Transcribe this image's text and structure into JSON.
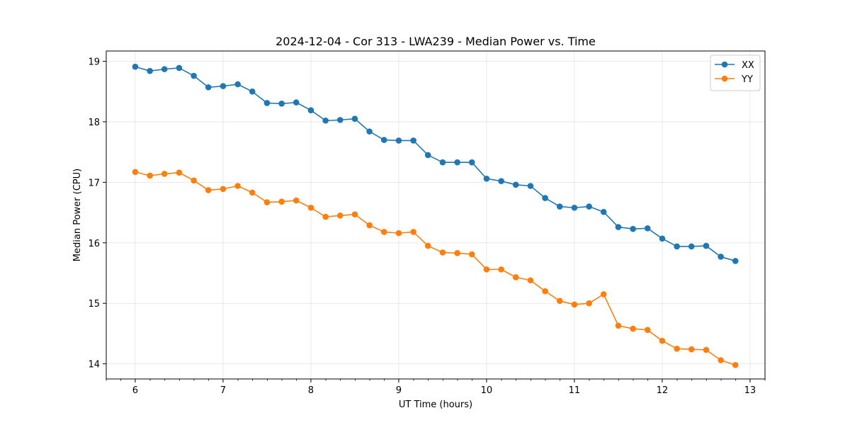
{
  "chart_data": {
    "type": "line",
    "title": "2024-12-04 - Cor 313 - LWA239 - Median Power vs. Time",
    "xlabel": "UT Time (hours)",
    "ylabel": "Median Power (CPU)",
    "xlim": [
      5.67,
      13.17
    ],
    "ylim": [
      13.75,
      19.17
    ],
    "xticks": [
      6,
      7,
      8,
      9,
      10,
      11,
      12,
      13
    ],
    "yticks": [
      14,
      15,
      16,
      17,
      18,
      19
    ],
    "grid": true,
    "legend_position": "top-right",
    "x": [
      6.0,
      6.167,
      6.333,
      6.5,
      6.667,
      6.833,
      7.0,
      7.167,
      7.333,
      7.5,
      7.667,
      7.833,
      8.0,
      8.167,
      8.333,
      8.5,
      8.667,
      8.833,
      9.0,
      9.167,
      9.333,
      9.5,
      9.667,
      9.833,
      10.0,
      10.167,
      10.333,
      10.5,
      10.667,
      10.833,
      11.0,
      11.167,
      11.333,
      11.5,
      11.667,
      11.833,
      12.0,
      12.167,
      12.333,
      12.5,
      12.667,
      12.833
    ],
    "series": [
      {
        "name": "XX",
        "color": "#1f77b4",
        "values": [
          18.91,
          18.84,
          18.87,
          18.89,
          18.76,
          18.57,
          18.59,
          18.62,
          18.5,
          18.31,
          18.3,
          18.32,
          18.19,
          18.02,
          18.03,
          18.05,
          17.84,
          17.7,
          17.69,
          17.69,
          17.45,
          17.33,
          17.33,
          17.33,
          17.06,
          17.02,
          16.96,
          16.94,
          16.74,
          16.6,
          16.58,
          16.6,
          16.51,
          16.26,
          16.23,
          16.24,
          16.07,
          15.94,
          15.94,
          15.95,
          15.77,
          15.7
        ]
      },
      {
        "name": "YY",
        "color": "#ff7f0e",
        "values": [
          17.17,
          17.11,
          17.14,
          17.16,
          17.03,
          16.87,
          16.89,
          16.94,
          16.83,
          16.67,
          16.68,
          16.7,
          16.58,
          16.43,
          16.45,
          16.47,
          16.29,
          16.18,
          16.16,
          16.18,
          15.95,
          15.84,
          15.83,
          15.81,
          15.56,
          15.56,
          15.43,
          15.38,
          15.2,
          15.04,
          14.98,
          15.0,
          15.15,
          14.63,
          14.58,
          14.56,
          14.38,
          14.25,
          14.24,
          14.23,
          14.06,
          13.98
        ]
      }
    ]
  }
}
